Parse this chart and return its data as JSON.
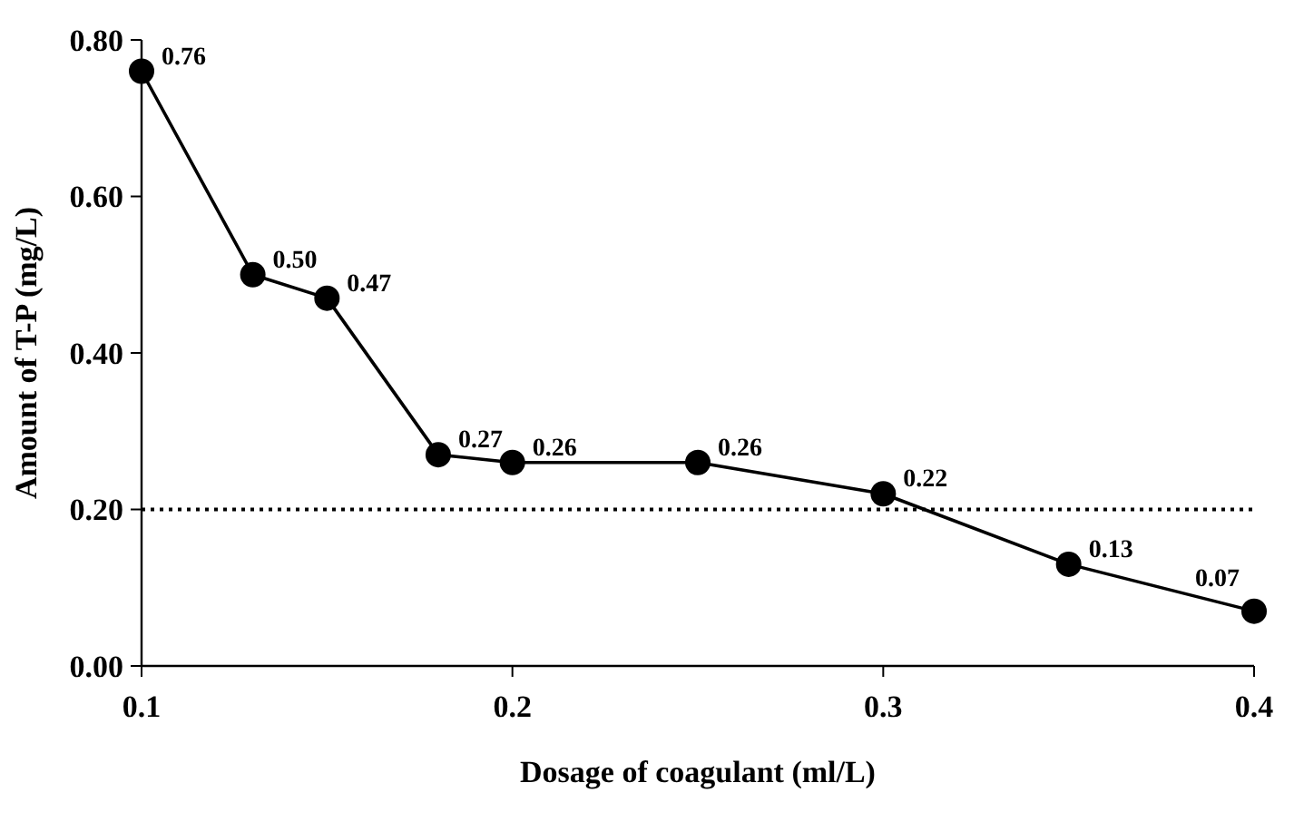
{
  "chart_data": {
    "type": "line",
    "xlabel": "Dosage of coagulant (ml/L)",
    "ylabel": "Amount of T-P (mg/L)",
    "x": [
      0.1,
      0.13,
      0.15,
      0.18,
      0.2,
      0.25,
      0.3,
      0.35,
      0.4
    ],
    "series": [
      {
        "color": "#000000",
        "values": [
          0.76,
          0.5,
          0.47,
          0.27,
          0.26,
          0.26,
          0.22,
          0.13,
          0.07
        ],
        "value_labels": [
          "0.76",
          "0.50",
          "0.47",
          "0.27",
          "0.26",
          "0.26",
          "0.22",
          "0.13",
          "0.07"
        ]
      }
    ],
    "xlim": [
      0.1,
      0.4
    ],
    "xticks": [
      0.1,
      0.2,
      0.3,
      0.4
    ],
    "ylim": [
      0,
      0.8
    ],
    "yticks": [
      {
        "value": 0,
        "label": "0.00"
      },
      {
        "value": 0.2,
        "label": "0.20"
      },
      {
        "value": 0.4,
        "label": "0.40"
      },
      {
        "value": 0.6,
        "label": "0.60"
      },
      {
        "value": 0.8,
        "label": "0.80"
      }
    ],
    "ref_lines": [
      {
        "axis": "y",
        "value": 0.2,
        "color": "#000000",
        "line_style": "dotted"
      }
    ],
    "marker": "circle",
    "line_style": "solid",
    "grid": false
  }
}
